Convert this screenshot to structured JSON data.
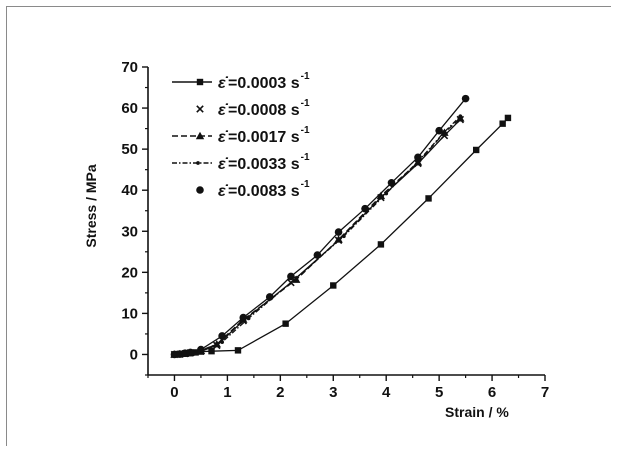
{
  "chart_data": {
    "type": "line",
    "xlabel": "Strain / %",
    "ylabel": "Stress / MPa",
    "xlim": [
      -0.5,
      7
    ],
    "ylim": [
      -5,
      70
    ],
    "xticks": [
      "0",
      "1",
      "2",
      "3",
      "4",
      "5",
      "6",
      "7"
    ],
    "yticks": [
      "0",
      "10",
      "20",
      "30",
      "40",
      "50",
      "60",
      "70"
    ],
    "legend_position": "top-left",
    "grid": false,
    "series": [
      {
        "name": "=0.0003 s",
        "symbol": "ε̇",
        "sup": "-1",
        "marker": "square",
        "dash": "solid",
        "points": [
          [
            0.0,
            0.0
          ],
          [
            0.1,
            0.0
          ],
          [
            0.2,
            0.2
          ],
          [
            0.3,
            0.3
          ],
          [
            0.4,
            0.5
          ],
          [
            0.5,
            0.7
          ],
          [
            0.7,
            0.8
          ],
          [
            1.2,
            1.0
          ],
          [
            2.1,
            7.5
          ],
          [
            3.0,
            16.8
          ],
          [
            3.9,
            26.8
          ],
          [
            4.8,
            38.0
          ],
          [
            5.7,
            49.8
          ],
          [
            6.2,
            56.2
          ],
          [
            6.3,
            57.6
          ]
        ]
      },
      {
        "name": "=0.0008 s",
        "symbol": "ε̇",
        "sup": "-1",
        "marker": "x",
        "dash": "solid",
        "points": [
          [
            0.0,
            0.0
          ],
          [
            0.1,
            0.1
          ],
          [
            0.2,
            0.2
          ],
          [
            0.3,
            0.4
          ],
          [
            0.5,
            0.8
          ],
          [
            0.8,
            2.2
          ],
          [
            1.3,
            8.2
          ],
          [
            2.2,
            17.5
          ],
          [
            3.1,
            27.8
          ],
          [
            3.9,
            38.2
          ],
          [
            4.6,
            46.5
          ],
          [
            5.1,
            53.3
          ],
          [
            5.4,
            57.2
          ]
        ]
      },
      {
        "name": "=0.0017 s",
        "symbol": "ε̇",
        "sup": "-1",
        "marker": "triangle",
        "dash": "dashed",
        "points": [
          [
            0.0,
            0.0
          ],
          [
            0.1,
            0.1
          ],
          [
            0.2,
            0.2
          ],
          [
            0.3,
            0.4
          ],
          [
            0.5,
            0.9
          ],
          [
            0.8,
            2.5
          ],
          [
            1.3,
            8.5
          ],
          [
            2.3,
            18.2
          ],
          [
            3.1,
            28.0
          ],
          [
            3.9,
            38.6
          ],
          [
            4.6,
            46.8
          ],
          [
            5.1,
            54.0
          ],
          [
            5.4,
            57.5
          ]
        ]
      },
      {
        "name": "=0.0033 s",
        "symbol": "ε̇",
        "sup": "-1",
        "marker": "dot",
        "dash": "dashdot",
        "points": [
          [
            0.0,
            0.0
          ],
          [
            0.1,
            0.1
          ],
          [
            0.2,
            0.3
          ],
          [
            0.3,
            0.5
          ],
          [
            0.5,
            1.0
          ],
          [
            0.9,
            3.0
          ],
          [
            1.4,
            8.8
          ],
          [
            2.3,
            18.6
          ],
          [
            3.2,
            28.8
          ],
          [
            4.0,
            39.2
          ],
          [
            4.6,
            47.0
          ],
          [
            5.1,
            54.2
          ],
          [
            5.4,
            58.0
          ]
        ]
      },
      {
        "name": "=0.0083 s",
        "symbol": "ε̇",
        "sup": "-1",
        "marker": "circle",
        "dash": "solid",
        "points": [
          [
            0.0,
            0.0
          ],
          [
            0.1,
            0.1
          ],
          [
            0.2,
            0.3
          ],
          [
            0.3,
            0.5
          ],
          [
            0.5,
            1.2
          ],
          [
            0.9,
            4.5
          ],
          [
            1.3,
            9.0
          ],
          [
            1.8,
            14.0
          ],
          [
            2.2,
            19.0
          ],
          [
            2.7,
            24.2
          ],
          [
            3.1,
            29.8
          ],
          [
            3.6,
            35.5
          ],
          [
            4.1,
            41.8
          ],
          [
            4.6,
            48.0
          ],
          [
            5.0,
            54.5
          ],
          [
            5.5,
            62.3
          ]
        ]
      }
    ]
  }
}
